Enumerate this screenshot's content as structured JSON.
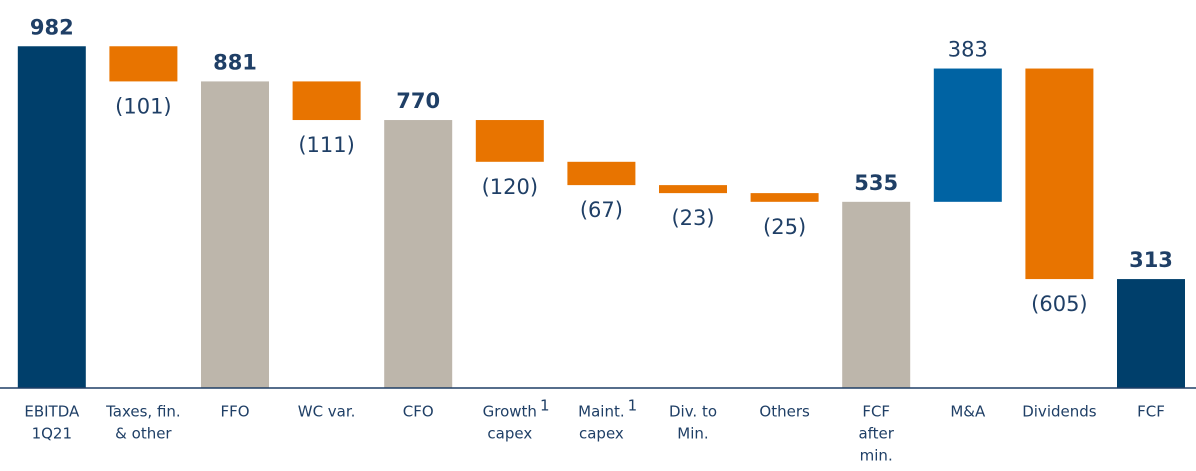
{
  "chart_data": {
    "type": "waterfall",
    "categories": [
      [
        "EBITDA",
        "1Q21"
      ],
      [
        "Taxes, fin.",
        "& other"
      ],
      [
        "FFO"
      ],
      [
        "WC var."
      ],
      [
        "CFO"
      ],
      [
        "Growth",
        "capex"
      ],
      [
        "Maint.",
        "capex"
      ],
      [
        "Div. to",
        "Min."
      ],
      [
        "Others"
      ],
      [
        "FCF",
        "after",
        "min."
      ],
      [
        "M&A"
      ],
      [
        "Dividends"
      ],
      [
        "FCF"
      ]
    ],
    "category_notes": [
      null,
      null,
      null,
      null,
      null,
      "1",
      "1",
      null,
      null,
      null,
      null,
      null,
      null
    ],
    "values": [
      982,
      -101,
      881,
      -111,
      770,
      -120,
      -67,
      -23,
      -25,
      535,
      383,
      -605,
      313
    ],
    "value_labels": [
      "982",
      "(101)",
      "881",
      "(111)",
      "770",
      "(120)",
      "(67)",
      "(23)",
      "(25)",
      "535",
      "383",
      "(605)",
      "313"
    ],
    "bar_types": [
      "total",
      "delta",
      "total",
      "delta",
      "total",
      "delta",
      "delta",
      "delta",
      "delta",
      "total",
      "delta",
      "delta",
      "total"
    ],
    "colors": [
      "#003f6b",
      "#e87400",
      "#bdb6ab",
      "#e87400",
      "#bdb6ab",
      "#e87400",
      "#e87400",
      "#e87400",
      "#e87400",
      "#bdb6ab",
      "#0063a3",
      "#e87400",
      "#003f6b"
    ],
    "ylim": [
      0,
      1000
    ]
  }
}
